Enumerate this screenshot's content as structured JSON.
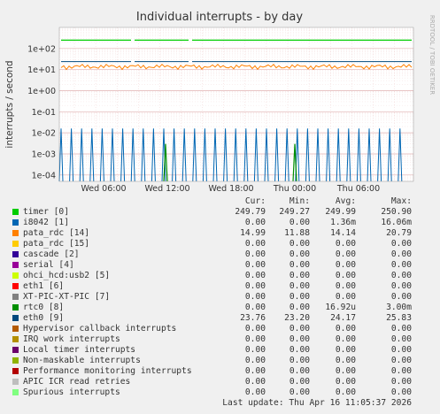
{
  "chart_data": {
    "type": "line",
    "title": "Individual interrupts - by day",
    "ylabel": "interrupts / second",
    "side_label": "RRDTOOL / TOBI OETIKER",
    "y_scale": "log",
    "ylim": [
      5e-05,
      1000
    ],
    "y_ticks": [
      "1e+02",
      "1e+01",
      "1e+00",
      "1e-01",
      "1e-02",
      "1e-03",
      "1e-04"
    ],
    "x_ticks": [
      "Wed 06:00",
      "Wed 12:00",
      "Wed 18:00",
      "Thu 00:00",
      "Thu 06:00"
    ],
    "grid": true,
    "series": [
      {
        "name": "timer [0]",
        "color": "#00cc00",
        "cur": "249.79",
        "min": "249.27",
        "avg": "249.99",
        "max": "250.90"
      },
      {
        "name": "i8042 [1]",
        "color": "#0066b3",
        "cur": "0.00",
        "min": "0.00",
        "avg": "1.36m",
        "max": "16.06m"
      },
      {
        "name": "pata_rdc [14]",
        "color": "#ff8000",
        "cur": "14.99",
        "min": "11.88",
        "avg": "14.14",
        "max": "20.79"
      },
      {
        "name": "pata_rdc [15]",
        "color": "#ffcc00",
        "cur": "0.00",
        "min": "0.00",
        "avg": "0.00",
        "max": "0.00"
      },
      {
        "name": "cascade [2]",
        "color": "#330099",
        "cur": "0.00",
        "min": "0.00",
        "avg": "0.00",
        "max": "0.00"
      },
      {
        "name": "serial [4]",
        "color": "#990099",
        "cur": "0.00",
        "min": "0.00",
        "avg": "0.00",
        "max": "0.00"
      },
      {
        "name": "ohci_hcd:usb2 [5]",
        "color": "#ccff00",
        "cur": "0.00",
        "min": "0.00",
        "avg": "0.00",
        "max": "0.00"
      },
      {
        "name": "eth1 [6]",
        "color": "#ff0000",
        "cur": "0.00",
        "min": "0.00",
        "avg": "0.00",
        "max": "0.00"
      },
      {
        "name": "XT-PIC-XT-PIC [7]",
        "color": "#808080",
        "cur": "0.00",
        "min": "0.00",
        "avg": "0.00",
        "max": "0.00"
      },
      {
        "name": "rtc0 [8]",
        "color": "#008f00",
        "cur": "0.00",
        "min": "0.00",
        "avg": "16.92u",
        "max": "3.00m"
      },
      {
        "name": "eth0 [9]",
        "color": "#00487d",
        "cur": "23.76",
        "min": "23.20",
        "avg": "24.17",
        "max": "25.83"
      },
      {
        "name": "Hypervisor callback interrupts",
        "color": "#b35a00",
        "cur": "0.00",
        "min": "0.00",
        "avg": "0.00",
        "max": "0.00"
      },
      {
        "name": "IRQ work interrupts",
        "color": "#b38f00",
        "cur": "0.00",
        "min": "0.00",
        "avg": "0.00",
        "max": "0.00"
      },
      {
        "name": "Local timer interrupts",
        "color": "#6b006b",
        "cur": "0.00",
        "min": "0.00",
        "avg": "0.00",
        "max": "0.00"
      },
      {
        "name": "Non-maskable interrupts",
        "color": "#8fb300",
        "cur": "0.00",
        "min": "0.00",
        "avg": "0.00",
        "max": "0.00"
      },
      {
        "name": "Performance monitoring interrupts",
        "color": "#b30000",
        "cur": "0.00",
        "min": "0.00",
        "avg": "0.00",
        "max": "0.00"
      },
      {
        "name": "APIC ICR read retries",
        "color": "#bebebe",
        "cur": "0.00",
        "min": "0.00",
        "avg": "0.00",
        "max": "0.00"
      },
      {
        "name": "Spurious interrupts",
        "color": "#80ff80",
        "cur": "0.00",
        "min": "0.00",
        "avg": "0.00",
        "max": "0.00"
      }
    ],
    "column_headers": {
      "cur": "Cur:",
      "min": "Min:",
      "avg": "Avg:",
      "max": "Max:"
    },
    "footer": "Last update: Thu Apr 16 11:05:37 2026"
  }
}
